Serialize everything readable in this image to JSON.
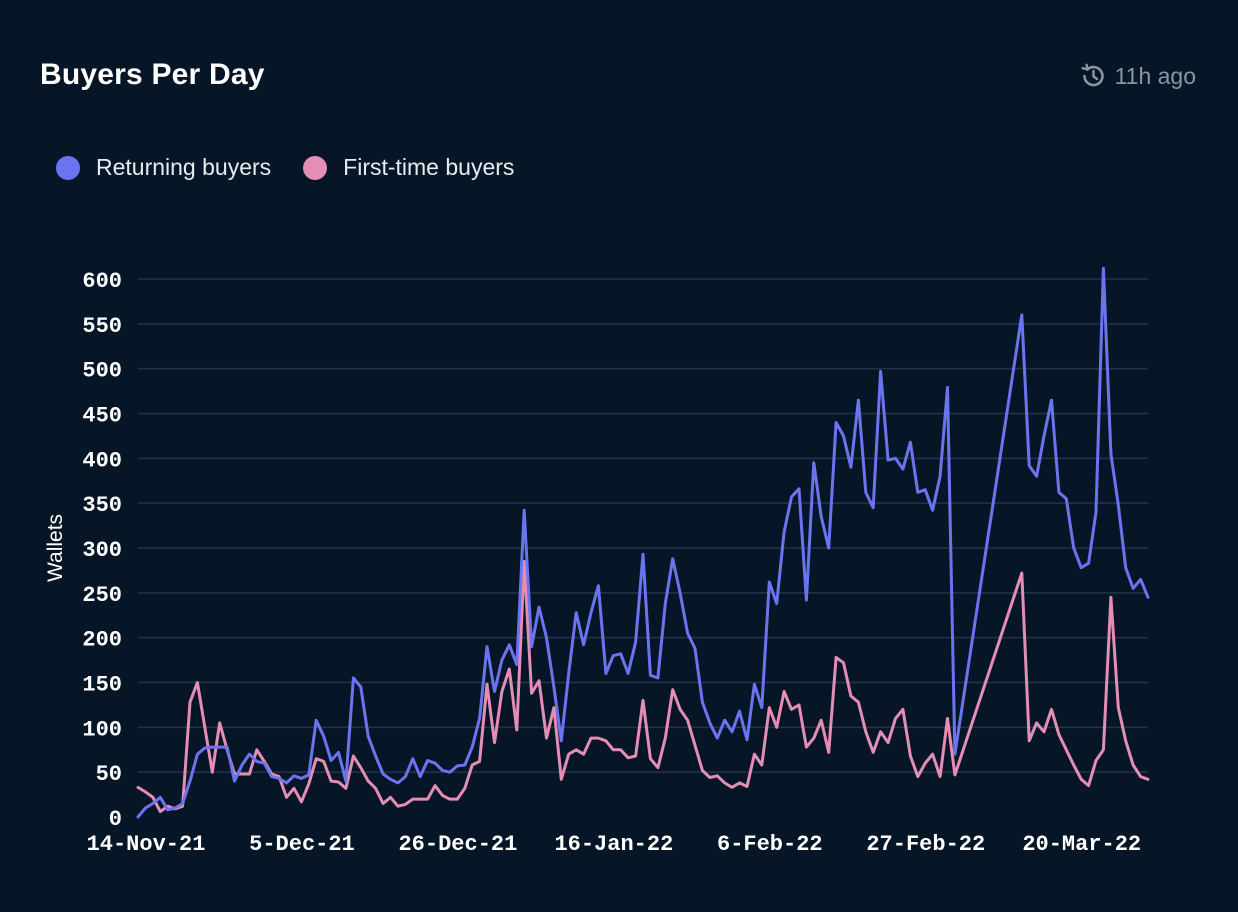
{
  "header": {
    "title": "Buyers Per Day",
    "updated": "11h ago",
    "updated_icon": "history-clock-icon"
  },
  "colors": {
    "background": "#071626",
    "returning": "#6b74ef",
    "first_time": "#e48db5",
    "grid": "#22344a"
  },
  "chart_data": {
    "type": "line",
    "ylabel": "Wallets",
    "xlabel": "",
    "ylim": [
      0,
      600
    ],
    "yticks": [
      0,
      50,
      100,
      150,
      200,
      250,
      300,
      350,
      400,
      450,
      500,
      550,
      600
    ],
    "grid": true,
    "legend_placement": "top-left",
    "x_start": "2021-11-14",
    "x_end": "2022-03-28",
    "xticks": [
      {
        "label": "14-Nov-21",
        "date": "2021-11-14"
      },
      {
        "label": "5-Dec-21",
        "date": "2021-12-05"
      },
      {
        "label": "26-Dec-21",
        "date": "2021-12-26"
      },
      {
        "label": "16-Jan-22",
        "date": "2022-01-16"
      },
      {
        "label": "6-Feb-22",
        "date": "2022-02-06"
      },
      {
        "label": "27-Feb-22",
        "date": "2022-02-27"
      },
      {
        "label": "20-Mar-22",
        "date": "2022-03-20"
      }
    ],
    "series": [
      {
        "name": "Returning buyers",
        "color": "#6b74ef",
        "points": [
          [
            "2021-11-14",
            0
          ],
          [
            "2021-11-15",
            10
          ],
          [
            "2021-11-16",
            15
          ],
          [
            "2021-11-17",
            22
          ],
          [
            "2021-11-18",
            8
          ],
          [
            "2021-11-19",
            10
          ],
          [
            "2021-11-20",
            15
          ],
          [
            "2021-11-21",
            40
          ],
          [
            "2021-11-22",
            70
          ],
          [
            "2021-11-23",
            77
          ],
          [
            "2021-11-24",
            78
          ],
          [
            "2021-11-25",
            78
          ],
          [
            "2021-11-26",
            78
          ],
          [
            "2021-11-27",
            40
          ],
          [
            "2021-11-28",
            58
          ],
          [
            "2021-11-29",
            70
          ],
          [
            "2021-11-30",
            62
          ],
          [
            "2021-12-01",
            60
          ],
          [
            "2021-12-02",
            45
          ],
          [
            "2021-12-03",
            43
          ],
          [
            "2021-12-04",
            38
          ],
          [
            "2021-12-05",
            46
          ],
          [
            "2021-12-06",
            43
          ],
          [
            "2021-12-07",
            47
          ],
          [
            "2021-12-08",
            108
          ],
          [
            "2021-12-09",
            90
          ],
          [
            "2021-12-10",
            63
          ],
          [
            "2021-12-11",
            72
          ],
          [
            "2021-12-12",
            40
          ],
          [
            "2021-12-13",
            155
          ],
          [
            "2021-12-14",
            145
          ],
          [
            "2021-12-15",
            90
          ],
          [
            "2021-12-16",
            68
          ],
          [
            "2021-12-17",
            48
          ],
          [
            "2021-12-18",
            42
          ],
          [
            "2021-12-19",
            38
          ],
          [
            "2021-12-20",
            45
          ],
          [
            "2021-12-21",
            65
          ],
          [
            "2021-12-22",
            45
          ],
          [
            "2021-12-23",
            63
          ],
          [
            "2021-12-24",
            60
          ],
          [
            "2021-12-25",
            52
          ],
          [
            "2021-12-26",
            50
          ],
          [
            "2021-12-27",
            57
          ],
          [
            "2021-12-28",
            58
          ],
          [
            "2021-12-29",
            78
          ],
          [
            "2021-12-30",
            110
          ],
          [
            "2021-12-31",
            190
          ],
          [
            "2022-01-01",
            140
          ],
          [
            "2022-01-02",
            175
          ],
          [
            "2022-01-03",
            192
          ],
          [
            "2022-01-04",
            170
          ],
          [
            "2022-01-05",
            342
          ],
          [
            "2022-01-06",
            190
          ],
          [
            "2022-01-07",
            234
          ],
          [
            "2022-01-08",
            200
          ],
          [
            "2022-01-09",
            145
          ],
          [
            "2022-01-10",
            85
          ],
          [
            "2022-01-11",
            160
          ],
          [
            "2022-01-12",
            228
          ],
          [
            "2022-01-13",
            192
          ],
          [
            "2022-01-14",
            228
          ],
          [
            "2022-01-15",
            258
          ],
          [
            "2022-01-16",
            160
          ],
          [
            "2022-01-17",
            180
          ],
          [
            "2022-01-18",
            182
          ],
          [
            "2022-01-19",
            160
          ],
          [
            "2022-01-20",
            195
          ],
          [
            "2022-01-21",
            293
          ],
          [
            "2022-01-22",
            158
          ],
          [
            "2022-01-23",
            155
          ],
          [
            "2022-01-24",
            238
          ],
          [
            "2022-01-25",
            288
          ],
          [
            "2022-01-26",
            250
          ],
          [
            "2022-01-27",
            205
          ],
          [
            "2022-01-28",
            188
          ],
          [
            "2022-01-29",
            128
          ],
          [
            "2022-01-30",
            105
          ],
          [
            "2022-01-31",
            88
          ],
          [
            "2022-02-01",
            108
          ],
          [
            "2022-02-02",
            95
          ],
          [
            "2022-02-03",
            118
          ],
          [
            "2022-02-04",
            86
          ],
          [
            "2022-02-05",
            148
          ],
          [
            "2022-02-06",
            122
          ],
          [
            "2022-02-07",
            262
          ],
          [
            "2022-02-08",
            238
          ],
          [
            "2022-02-09",
            318
          ],
          [
            "2022-02-10",
            357
          ],
          [
            "2022-02-11",
            366
          ],
          [
            "2022-02-12",
            242
          ],
          [
            "2022-02-13",
            395
          ],
          [
            "2022-02-14",
            335
          ],
          [
            "2022-02-15",
            300
          ],
          [
            "2022-02-16",
            440
          ],
          [
            "2022-02-17",
            425
          ],
          [
            "2022-02-18",
            390
          ],
          [
            "2022-02-19",
            465
          ],
          [
            "2022-02-20",
            362
          ],
          [
            "2022-02-21",
            345
          ],
          [
            "2022-02-22",
            497
          ],
          [
            "2022-02-23",
            398
          ],
          [
            "2022-02-24",
            400
          ],
          [
            "2022-02-25",
            388
          ],
          [
            "2022-02-26",
            418
          ],
          [
            "2022-02-27",
            362
          ],
          [
            "2022-02-28",
            365
          ],
          [
            "2022-03-01",
            342
          ],
          [
            "2022-03-02",
            380
          ],
          [
            "2022-03-03",
            479
          ],
          [
            "2022-03-04",
            70
          ],
          [
            "2022-03-13",
            560
          ],
          [
            "2022-03-14",
            392
          ],
          [
            "2022-03-15",
            380
          ],
          [
            "2022-03-16",
            425
          ],
          [
            "2022-03-17",
            465
          ],
          [
            "2022-03-18",
            362
          ],
          [
            "2022-03-19",
            355
          ],
          [
            "2022-03-20",
            300
          ],
          [
            "2022-03-21",
            278
          ],
          [
            "2022-03-22",
            283
          ],
          [
            "2022-03-23",
            340
          ],
          [
            "2022-03-24",
            612
          ],
          [
            "2022-03-25",
            405
          ],
          [
            "2022-03-26",
            348
          ],
          [
            "2022-03-27",
            278
          ],
          [
            "2022-03-28",
            255
          ],
          [
            "2022-03-29",
            265
          ],
          [
            "2022-03-30",
            245
          ]
        ]
      },
      {
        "name": "First-time buyers",
        "color": "#e48db5",
        "points": [
          [
            "2021-11-14",
            33
          ],
          [
            "2021-11-15",
            28
          ],
          [
            "2021-11-16",
            22
          ],
          [
            "2021-11-17",
            6
          ],
          [
            "2021-11-18",
            12
          ],
          [
            "2021-11-19",
            9
          ],
          [
            "2021-11-20",
            12
          ],
          [
            "2021-11-21",
            128
          ],
          [
            "2021-11-22",
            150
          ],
          [
            "2021-11-23",
            100
          ],
          [
            "2021-11-24",
            50
          ],
          [
            "2021-11-25",
            105
          ],
          [
            "2021-11-26",
            75
          ],
          [
            "2021-11-27",
            48
          ],
          [
            "2021-11-28",
            48
          ],
          [
            "2021-11-29",
            48
          ],
          [
            "2021-11-30",
            75
          ],
          [
            "2021-12-01",
            62
          ],
          [
            "2021-12-02",
            48
          ],
          [
            "2021-12-03",
            45
          ],
          [
            "2021-12-04",
            22
          ],
          [
            "2021-12-05",
            32
          ],
          [
            "2021-12-06",
            17
          ],
          [
            "2021-12-07",
            37
          ],
          [
            "2021-12-08",
            65
          ],
          [
            "2021-12-09",
            62
          ],
          [
            "2021-12-10",
            40
          ],
          [
            "2021-12-11",
            39
          ],
          [
            "2021-12-12",
            32
          ],
          [
            "2021-12-13",
            68
          ],
          [
            "2021-12-14",
            55
          ],
          [
            "2021-12-15",
            40
          ],
          [
            "2021-12-16",
            32
          ],
          [
            "2021-12-17",
            15
          ],
          [
            "2021-12-18",
            22
          ],
          [
            "2021-12-19",
            12
          ],
          [
            "2021-12-20",
            14
          ],
          [
            "2021-12-21",
            20
          ],
          [
            "2021-12-22",
            20
          ],
          [
            "2021-12-23",
            20
          ],
          [
            "2021-12-24",
            35
          ],
          [
            "2021-12-25",
            24
          ],
          [
            "2021-12-26",
            20
          ],
          [
            "2021-12-27",
            20
          ],
          [
            "2021-12-28",
            32
          ],
          [
            "2021-12-29",
            58
          ],
          [
            "2021-12-30",
            62
          ],
          [
            "2021-12-31",
            148
          ],
          [
            "2022-01-01",
            83
          ],
          [
            "2022-01-02",
            140
          ],
          [
            "2022-01-03",
            165
          ],
          [
            "2022-01-04",
            97
          ],
          [
            "2022-01-05",
            285
          ],
          [
            "2022-01-06",
            138
          ],
          [
            "2022-01-07",
            152
          ],
          [
            "2022-01-08",
            88
          ],
          [
            "2022-01-09",
            122
          ],
          [
            "2022-01-10",
            42
          ],
          [
            "2022-01-11",
            70
          ],
          [
            "2022-01-12",
            75
          ],
          [
            "2022-01-13",
            70
          ],
          [
            "2022-01-14",
            88
          ],
          [
            "2022-01-15",
            88
          ],
          [
            "2022-01-16",
            85
          ],
          [
            "2022-01-17",
            75
          ],
          [
            "2022-01-18",
            75
          ],
          [
            "2022-01-19",
            66
          ],
          [
            "2022-01-20",
            68
          ],
          [
            "2022-01-21",
            130
          ],
          [
            "2022-01-22",
            65
          ],
          [
            "2022-01-23",
            55
          ],
          [
            "2022-01-24",
            88
          ],
          [
            "2022-01-25",
            142
          ],
          [
            "2022-01-26",
            120
          ],
          [
            "2022-01-27",
            108
          ],
          [
            "2022-01-28",
            80
          ],
          [
            "2022-01-29",
            52
          ],
          [
            "2022-01-30",
            44
          ],
          [
            "2022-01-31",
            46
          ],
          [
            "2022-02-01",
            38
          ],
          [
            "2022-02-02",
            33
          ],
          [
            "2022-02-03",
            38
          ],
          [
            "2022-02-04",
            34
          ],
          [
            "2022-02-05",
            70
          ],
          [
            "2022-02-06",
            58
          ],
          [
            "2022-02-07",
            122
          ],
          [
            "2022-02-08",
            100
          ],
          [
            "2022-02-09",
            140
          ],
          [
            "2022-02-10",
            120
          ],
          [
            "2022-02-11",
            125
          ],
          [
            "2022-02-12",
            78
          ],
          [
            "2022-02-13",
            88
          ],
          [
            "2022-02-14",
            108
          ],
          [
            "2022-02-15",
            72
          ],
          [
            "2022-02-16",
            178
          ],
          [
            "2022-02-17",
            172
          ],
          [
            "2022-02-18",
            135
          ],
          [
            "2022-02-19",
            128
          ],
          [
            "2022-02-20",
            95
          ],
          [
            "2022-02-21",
            72
          ],
          [
            "2022-02-22",
            95
          ],
          [
            "2022-02-23",
            83
          ],
          [
            "2022-02-24",
            110
          ],
          [
            "2022-02-25",
            120
          ],
          [
            "2022-02-26",
            68
          ],
          [
            "2022-02-27",
            45
          ],
          [
            "2022-02-28",
            60
          ],
          [
            "2022-03-01",
            70
          ],
          [
            "2022-03-02",
            45
          ],
          [
            "2022-03-03",
            110
          ],
          [
            "2022-03-04",
            47
          ],
          [
            "2022-03-13",
            272
          ],
          [
            "2022-03-14",
            85
          ],
          [
            "2022-03-15",
            105
          ],
          [
            "2022-03-16",
            95
          ],
          [
            "2022-03-17",
            120
          ],
          [
            "2022-03-18",
            92
          ],
          [
            "2022-03-19",
            75
          ],
          [
            "2022-03-20",
            58
          ],
          [
            "2022-03-21",
            42
          ],
          [
            "2022-03-22",
            35
          ],
          [
            "2022-03-23",
            63
          ],
          [
            "2022-03-24",
            75
          ],
          [
            "2022-03-25",
            245
          ],
          [
            "2022-03-26",
            122
          ],
          [
            "2022-03-27",
            85
          ],
          [
            "2022-03-28",
            58
          ],
          [
            "2022-03-29",
            45
          ],
          [
            "2022-03-30",
            42
          ]
        ]
      }
    ]
  }
}
